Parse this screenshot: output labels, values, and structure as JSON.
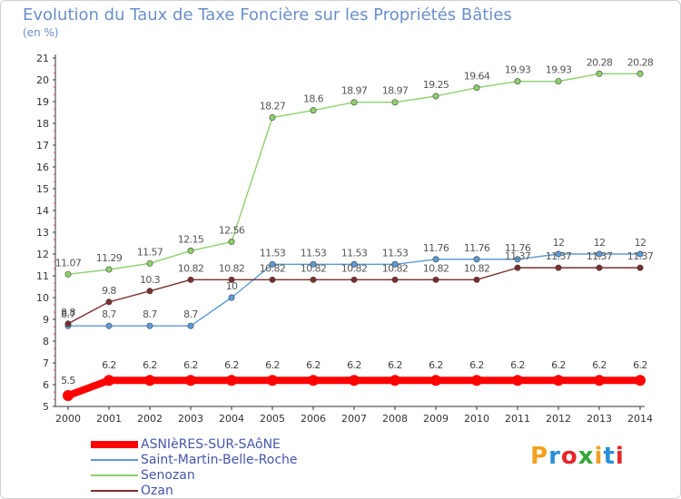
{
  "title": "Evolution du Taux de Taxe Foncière sur les Propriétés Bâties",
  "unit_label": "(en %)",
  "logo": {
    "text": "Proxiti",
    "colors": [
      "#f0a020",
      "#2b8fd6",
      "#e5262a",
      "#36a836",
      "#f0a020",
      "#2b8fd6",
      "#e5262a"
    ]
  },
  "chart_data": {
    "type": "line",
    "title": "Evolution du Taux de Taxe Foncière sur les Propriétés Bâties",
    "ylabel": "(en %)",
    "xlabel": "",
    "x": [
      "2000",
      "2001",
      "2002",
      "2003",
      "2004",
      "2005",
      "2006",
      "2007",
      "2008",
      "2009",
      "2010",
      "2011",
      "2012",
      "2013",
      "2014"
    ],
    "ylim": [
      5,
      21
    ],
    "yticks": [
      "5",
      "6",
      "7",
      "8",
      "9",
      "10",
      "11",
      "12",
      "13",
      "14",
      "15",
      "16",
      "17",
      "18",
      "19",
      "20",
      "21"
    ],
    "grid": false,
    "legend_position": "bottom-left",
    "series": [
      {
        "name": "ASNIèRES-SUR-SAôNE",
        "color": "#ff0000",
        "values": [
          5.5,
          6.2,
          6.2,
          6.2,
          6.2,
          6.2,
          6.2,
          6.2,
          6.2,
          6.2,
          6.2,
          6.2,
          6.2,
          6.2,
          6.2
        ],
        "labels": [
          "5.5",
          "6.2",
          "6.2",
          "6.2",
          "6.2",
          "6.2",
          "6.2",
          "6.2",
          "6.2",
          "6.2",
          "6.2",
          "6.2",
          "6.2",
          "6.2",
          "6.2"
        ]
      },
      {
        "name": "Saint-Martin-Belle-Roche",
        "color": "#5b9bd5",
        "values": [
          8.7,
          8.7,
          8.7,
          8.7,
          10,
          11.53,
          11.53,
          11.53,
          11.53,
          11.76,
          11.76,
          11.76,
          12,
          12,
          12
        ],
        "labels": [
          "8.7",
          "8.7",
          "8.7",
          "8.7",
          "10",
          "11.53",
          "11.53",
          "11.53",
          "11.53",
          "11.76",
          "11.76",
          "11.76",
          "12",
          "12",
          "12"
        ]
      },
      {
        "name": "Senozan",
        "color": "#8ed06c",
        "values": [
          11.07,
          11.29,
          11.57,
          12.15,
          12.56,
          18.27,
          18.6,
          18.97,
          18.97,
          19.25,
          19.64,
          19.93,
          19.93,
          20.28,
          20.28
        ],
        "labels": [
          "11.07",
          "11.29",
          "11.57",
          "12.15",
          "12.56",
          "18.27",
          "18.6",
          "18.97",
          "18.97",
          "19.25",
          "19.64",
          "19.93",
          "19.93",
          "20.28",
          "20.28"
        ]
      },
      {
        "name": "Ozan",
        "color": "#7a2e2e",
        "values": [
          8.8,
          9.8,
          10.3,
          10.82,
          10.82,
          10.82,
          10.82,
          10.82,
          10.82,
          10.82,
          10.82,
          11.37,
          11.37,
          11.37,
          11.37
        ],
        "labels": [
          "8.8",
          "9.8",
          "10.3",
          "10.82",
          "10.82",
          "10.82",
          "10.82",
          "10.82",
          "10.82",
          "10.82",
          "10.82",
          "11.37",
          "11.37",
          "11.37",
          "11.37"
        ]
      }
    ]
  }
}
